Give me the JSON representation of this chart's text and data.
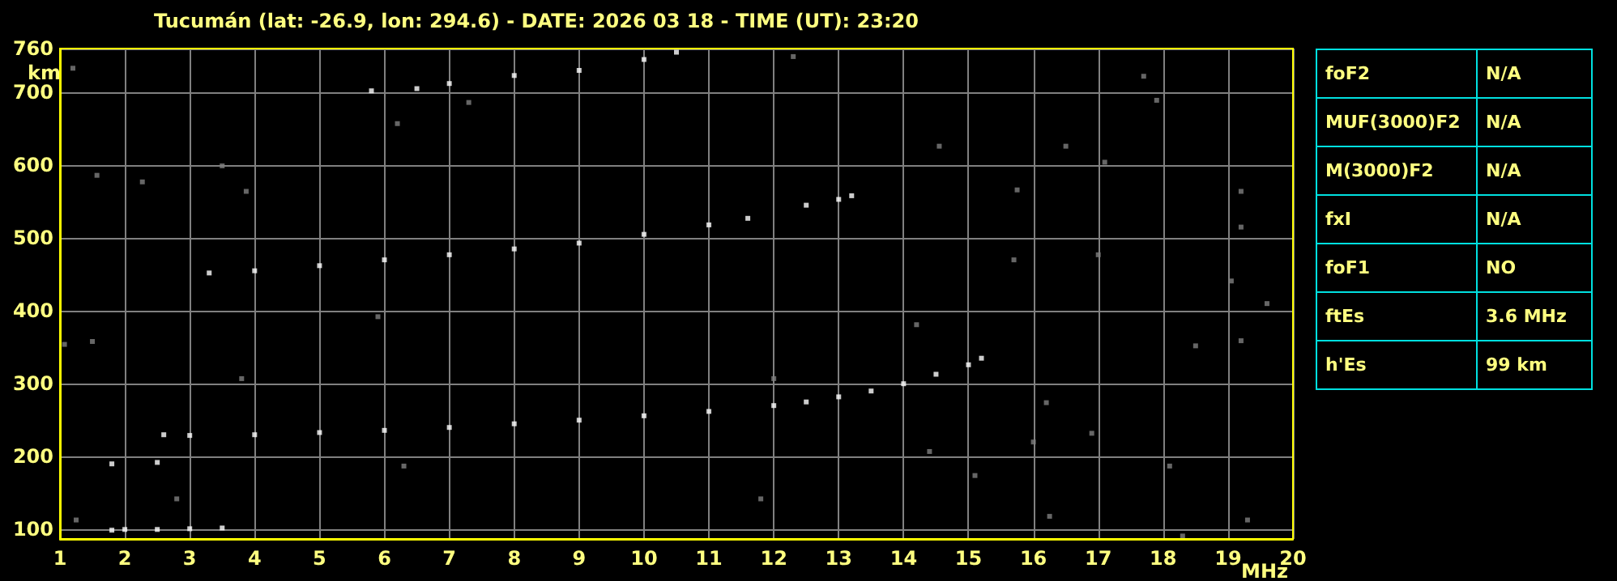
{
  "chart_data": [
    {
      "type": "scatter",
      "title": "Tucumán (lat: -26.9, lon: 294.6) - DATE: 2026 03 18 - TIME (UT): 23:20",
      "xlabel": "MHz",
      "ylabel": "km",
      "xlim": [
        1,
        20
      ],
      "ylim": [
        87,
        760
      ],
      "xticks": [
        1,
        2,
        3,
        4,
        5,
        6,
        7,
        8,
        9,
        10,
        11,
        12,
        13,
        14,
        15,
        16,
        17,
        18,
        19,
        20
      ],
      "yticks": [
        100,
        200,
        300,
        400,
        500,
        600,
        700,
        760
      ],
      "grid": true,
      "marker": "square",
      "series": [
        {
          "color": "#ffffff",
          "x": [
            1.8,
            2,
            2.5,
            3,
            3.5,
            1.8,
            2.5,
            2.6,
            3,
            4,
            5,
            6,
            7,
            8,
            9,
            10,
            11,
            12,
            12.5,
            13,
            13.5,
            14,
            14.5,
            15,
            15.2,
            3.3,
            4,
            5,
            6,
            7,
            8,
            9,
            10,
            11,
            11.6,
            12.5,
            13,
            13.2,
            5.8,
            6.5,
            7,
            8,
            9,
            10,
            10.5
          ],
          "values": [
            99,
            100,
            100,
            101,
            102,
            190,
            192,
            230,
            229,
            230,
            233,
            236,
            240,
            245,
            250,
            256,
            262,
            270,
            275,
            282,
            290,
            300,
            313,
            326,
            335,
            452,
            455,
            462,
            470,
            477,
            485,
            493,
            505,
            518,
            527,
            545,
            553,
            558,
            702,
            705,
            712,
            723,
            730,
            745,
            755
          ]
        },
        {
          "color": "#808080",
          "x": [
            17.9,
            16.0,
            16.25,
            18.3,
            19.2,
            19.2,
            19.3,
            15.75,
            17.0,
            19.05,
            14.55,
            16.5,
            18.5,
            16.2,
            16.9,
            15.1,
            17.7,
            19.2,
            14.2,
            17.1,
            14.4,
            18.1,
            19.6,
            15.7,
            1.57,
            3.5,
            1.2,
            3.87,
            7.3,
            6.2,
            2.27,
            12.3,
            1.07,
            1.5,
            3.8,
            5.9,
            12.0,
            11.8,
            2.8,
            1.25,
            6.3
          ],
          "values": [
            689,
            220,
            118,
            91,
            564,
            359,
            113,
            566,
            477,
            441,
            626,
            626,
            352,
            274,
            232,
            174,
            722,
            515,
            381,
            604,
            207,
            187,
            410,
            470,
            586,
            599,
            733,
            564,
            686,
            657,
            577,
            749,
            354,
            358,
            307,
            392,
            307,
            142,
            142,
            113,
            187
          ]
        }
      ]
    },
    {
      "type": "other",
      "annotations": [
        "foF2",
        "N/A",
        "MUF(3000)F2",
        "N/A",
        "M(3000)F2",
        "N/A",
        "fxI",
        "N/A",
        "foF1",
        "NO",
        "ftEs",
        "3.6 MHz",
        "h'Es",
        "99 km"
      ]
    }
  ]
}
